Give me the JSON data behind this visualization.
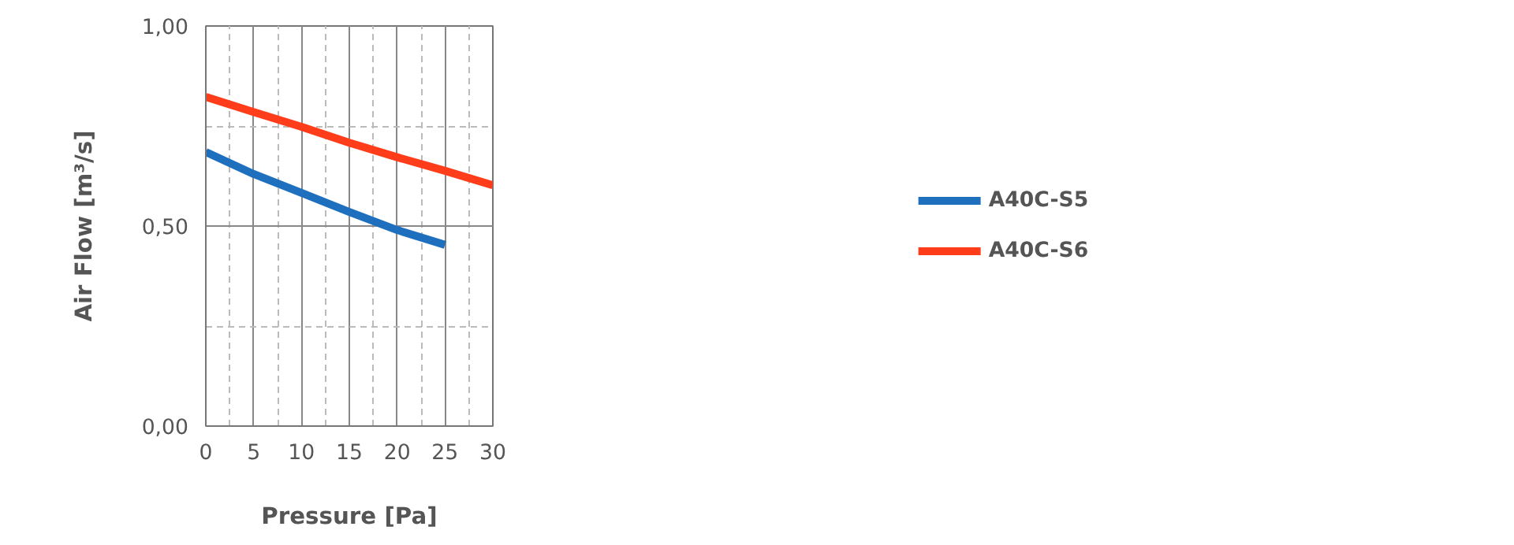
{
  "chart_data": {
    "type": "line",
    "xlabel": "Pressure [Pa]",
    "ylabel": "Air Flow [m³/s]",
    "x": [
      0,
      5,
      10,
      15,
      20,
      25,
      30
    ],
    "series": [
      {
        "name": "A40C-S5",
        "color": "#1f6fbf",
        "values": [
          0.685,
          0.63,
          0.583,
          0.535,
          0.49,
          0.453,
          null
        ]
      },
      {
        "name": "A40C-S6",
        "color": "#ff3d1a",
        "values": [
          0.823,
          0.785,
          0.748,
          0.708,
          0.672,
          0.638,
          0.602
        ]
      }
    ],
    "xlim": [
      0,
      30
    ],
    "ylim": [
      0,
      1
    ],
    "xticks": [
      0,
      {
        "value": 2.5,
        "label": null
      },
      5,
      {
        "value": 7.5,
        "label": null
      },
      10,
      {
        "value": 12.5,
        "label": null
      },
      15,
      {
        "value": 17.5,
        "label": null
      },
      20,
      {
        "value": 22.5,
        "label": null
      },
      25,
      {
        "value": 27.5,
        "label": null
      },
      30
    ],
    "yticks": [
      {
        "value": 0,
        "label": "0,00"
      },
      {
        "value": 0.25,
        "label": null
      },
      {
        "value": 0.5,
        "label": "0,50"
      },
      {
        "value": 0.75,
        "label": null
      },
      {
        "value": 1,
        "label": "1,00"
      }
    ],
    "grid": true,
    "legend": "right",
    "marker": "none",
    "line_style": "solid"
  }
}
